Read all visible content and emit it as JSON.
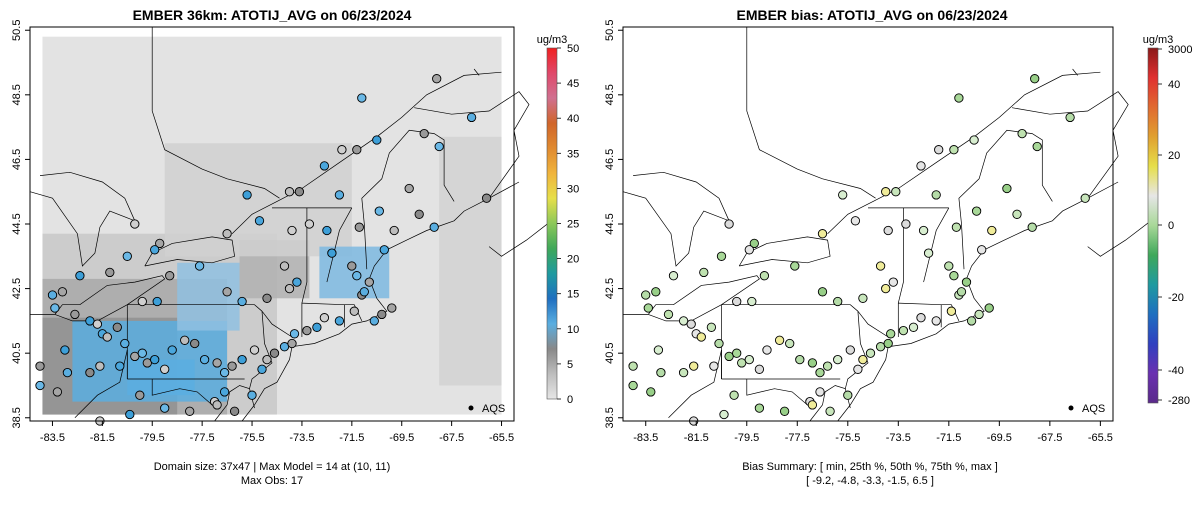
{
  "chart_data": [
    {
      "type": "map",
      "title": "EMBER 36km: ATOTIJ_AVG on 06/23/2024",
      "x_ticks": [
        "-83.5",
        "-81.5",
        "-79.5",
        "-77.5",
        "-75.5",
        "-73.5",
        "-71.5",
        "-69.5",
        "-67.5",
        "-65.5"
      ],
      "y_ticks": [
        "38.5",
        "40.5",
        "42.5",
        "44.5",
        "46.5",
        "48.5",
        "50.5"
      ],
      "xlim": [
        -84.4,
        -65.0
      ],
      "ylim": [
        38.4,
        50.6
      ],
      "legend_label": "AQS",
      "caption": [
        "Domain size: 37x47 | Max Model = 14 at (10, 11)",
        "Max Obs: 17"
      ],
      "colorbar": {
        "unit": "ug/m3",
        "range": [
          0,
          50
        ],
        "ticks": [
          "0",
          "5",
          "10",
          "15",
          "20",
          "25",
          "30",
          "35",
          "40",
          "45",
          "50"
        ],
        "gradient": [
          "#e6e6e6",
          "#bdbdbd",
          "#888888",
          "#5aaee0",
          "#1f6fc0",
          "#1f9aa0",
          "#3fa85a",
          "#8cc85a",
          "#e6df4a",
          "#f0b43c",
          "#e08a30",
          "#d0652a",
          "#d07090",
          "#e0486a",
          "#f02020"
        ]
      },
      "station_values_ugm3": [
        12,
        11,
        10,
        9,
        8,
        7,
        6,
        5,
        4,
        3,
        11,
        10,
        13,
        12,
        9,
        8,
        14,
        17
      ]
    },
    {
      "type": "map",
      "title": "EMBER bias: ATOTIJ_AVG on 06/23/2024",
      "x_ticks": [
        "-83.5",
        "-81.5",
        "-79.5",
        "-77.5",
        "-75.5",
        "-73.5",
        "-71.5",
        "-69.5",
        "-67.5",
        "-65.5"
      ],
      "y_ticks": [
        "38.5",
        "40.5",
        "42.5",
        "44.5",
        "46.5",
        "48.5",
        "50.5"
      ],
      "xlim": [
        -84.4,
        -65.0
      ],
      "ylim": [
        38.4,
        50.6
      ],
      "legend_label": "AQS",
      "caption": [
        "Bias Summary: [ min, 25th %, 50th %, 75th %, max ]",
        "[ -9.2,   -4.8,   -3.3,   -1.5,   6.5 ]"
      ],
      "bias_summary": {
        "min": -9.2,
        "p25": -4.8,
        "p50": -3.3,
        "p75": -1.5,
        "max": 6.5
      },
      "colorbar": {
        "unit": "ug/m3",
        "ticks_top_to_bottom": [
          "3000",
          "40",
          "20",
          "0",
          "-20",
          "-40",
          "-280"
        ],
        "gradient": [
          "#8b1a1a",
          "#e03030",
          "#e06a30",
          "#e0a030",
          "#e6df4a",
          "#e6e6e6",
          "#a8d898",
          "#3fa85a",
          "#1f9aa0",
          "#1f6fc0",
          "#3040c0",
          "#6a30b0",
          "#5a2a8a"
        ]
      }
    }
  ]
}
